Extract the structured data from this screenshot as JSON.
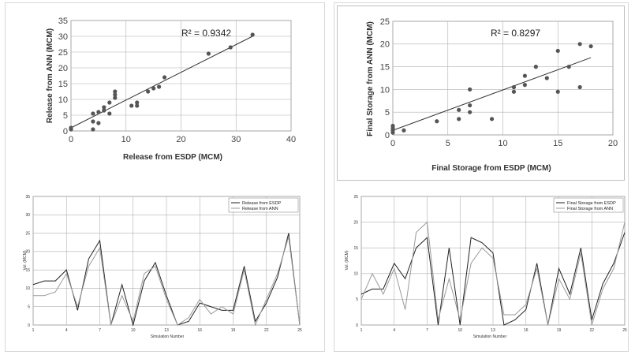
{
  "chart_data": [
    {
      "type": "scatter",
      "id": "release-scatter",
      "xlabel": "Release from ESDP (MCM)",
      "ylabel": "Release from ANN (MCM)",
      "annotation": "R² = 0.9342",
      "xlim": [
        0,
        40
      ],
      "ylim": [
        0,
        35
      ],
      "xticks": [
        0,
        10,
        20,
        30,
        40
      ],
      "yticks": [
        0,
        5,
        10,
        15,
        20,
        25,
        30,
        35
      ],
      "grid": true,
      "points": [
        [
          0,
          0.5
        ],
        [
          0,
          1
        ],
        [
          4,
          0.5
        ],
        [
          4,
          3
        ],
        [
          4,
          5.5
        ],
        [
          5,
          2.5
        ],
        [
          5,
          6
        ],
        [
          6,
          6.5
        ],
        [
          6,
          7.5
        ],
        [
          7,
          5.5
        ],
        [
          7,
          9
        ],
        [
          8,
          10.5
        ],
        [
          8,
          12.5
        ],
        [
          8,
          11.5
        ],
        [
          11,
          8
        ],
        [
          12,
          8
        ],
        [
          12,
          9
        ],
        [
          14,
          12.5
        ],
        [
          15,
          13.5
        ],
        [
          16,
          14
        ],
        [
          17,
          17
        ],
        [
          25,
          24.5
        ],
        [
          29,
          26.5
        ],
        [
          33,
          30.5
        ]
      ],
      "trendline": [
        [
          0,
          1
        ],
        [
          33,
          30
        ]
      ]
    },
    {
      "type": "scatter",
      "id": "storage-scatter",
      "xlabel": "Final Storage from ESDP (MCM)",
      "ylabel": "Final Storage from ANN (MCM)",
      "annotation": "R² = 0.8297",
      "xlim": [
        0,
        20
      ],
      "ylim": [
        0,
        25
      ],
      "xticks": [
        0,
        5,
        10,
        15,
        20
      ],
      "yticks": [
        0,
        5,
        10,
        15,
        20,
        25
      ],
      "grid": true,
      "points": [
        [
          0,
          0.5
        ],
        [
          0,
          1
        ],
        [
          0,
          1.5
        ],
        [
          0,
          2
        ],
        [
          1,
          1
        ],
        [
          4,
          3
        ],
        [
          6,
          3.5
        ],
        [
          6,
          5.5
        ],
        [
          7,
          5
        ],
        [
          7,
          6.5
        ],
        [
          7,
          10
        ],
        [
          9,
          3.5
        ],
        [
          11,
          9.5
        ],
        [
          11,
          10.5
        ],
        [
          12,
          11
        ],
        [
          12,
          13
        ],
        [
          13,
          15
        ],
        [
          14,
          12.5
        ],
        [
          15,
          9.5
        ],
        [
          15,
          18.5
        ],
        [
          16,
          15
        ],
        [
          17,
          10.5
        ],
        [
          17,
          20
        ],
        [
          18,
          19.5
        ]
      ],
      "trendline": [
        [
          0,
          1
        ],
        [
          18,
          17
        ]
      ]
    },
    {
      "type": "line",
      "id": "release-series",
      "xlabel": "Simulation Number",
      "ylabel": "Vol. (MCM)",
      "xlim": [
        1,
        25
      ],
      "ylim": [
        0,
        35
      ],
      "xticks": [
        1,
        4,
        7,
        10,
        13,
        16,
        19,
        22,
        25
      ],
      "yticks": [
        0,
        5,
        10,
        15,
        20,
        25,
        30,
        35
      ],
      "legend": "top-right",
      "series": [
        {
          "name": "Release from ESDP",
          "values": [
            11,
            12,
            12,
            15,
            4,
            18,
            23,
            0,
            11,
            0,
            12,
            17,
            8,
            0,
            1,
            6,
            5,
            4,
            4,
            16,
            1,
            6,
            13,
            25,
            0
          ]
        },
        {
          "name": "Release from ANN",
          "values": [
            8,
            8,
            9,
            14,
            5,
            16,
            21,
            0,
            8,
            1,
            14,
            16,
            7,
            0,
            2,
            7,
            3,
            5,
            3,
            15,
            0,
            7,
            14,
            24,
            0
          ]
        }
      ]
    },
    {
      "type": "line",
      "id": "storage-series",
      "xlabel": "Simulation Number",
      "ylabel": "Vol. (MCM)",
      "xlim": [
        1,
        25
      ],
      "ylim": [
        0,
        25
      ],
      "xticks": [
        1,
        4,
        7,
        10,
        13,
        16,
        19,
        22,
        25
      ],
      "yticks": [
        0,
        5,
        10,
        15,
        20,
        25
      ],
      "legend": "top-right",
      "series": [
        {
          "name": "Final Storage from ESDP",
          "values": [
            6,
            7,
            7,
            12,
            9,
            15,
            17,
            0,
            15,
            0,
            17,
            16,
            14,
            0,
            1,
            3,
            12,
            0,
            11,
            6,
            15,
            1,
            8,
            12,
            18
          ]
        },
        {
          "name": "Final Storage from ANN",
          "values": [
            5,
            10,
            6,
            11,
            3,
            18,
            20,
            1,
            9,
            1,
            12,
            15,
            13,
            2,
            2,
            4,
            11,
            0,
            9,
            5,
            14,
            0,
            7,
            11,
            20
          ]
        }
      ]
    }
  ],
  "colors": {
    "esdp_line": "#222222",
    "ann_line": "#9a9a9a",
    "points": "#555555",
    "grid": "#b0b0b0"
  }
}
